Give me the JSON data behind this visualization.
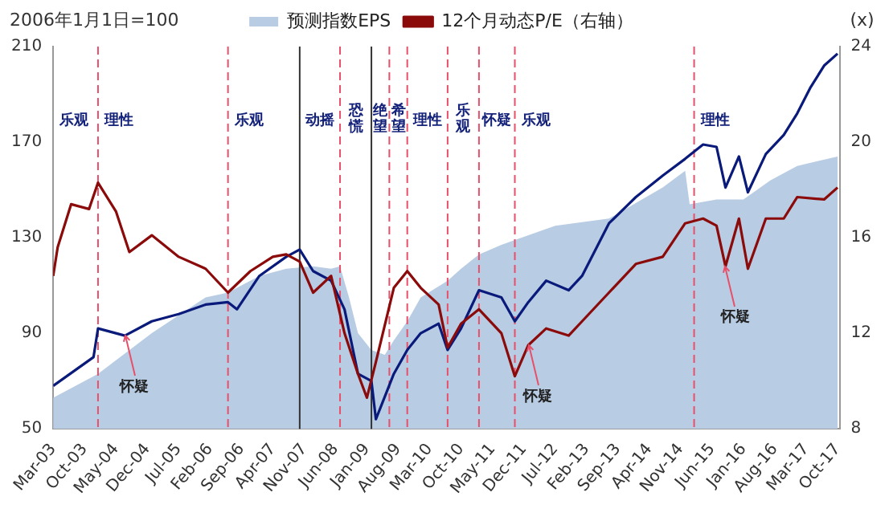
{
  "chart_data": {
    "type": "line",
    "ylabel": "2006年1月1日=100",
    "y2label": "(x)",
    "legend": "top",
    "xlim": [
      "2003-03",
      "2017-10-15"
    ],
    "xticks": [
      {
        "value": "2003-03",
        "label": "Mar-03"
      },
      {
        "value": "2003-10",
        "label": "Oct-03"
      },
      {
        "value": "2004-05",
        "label": "May-04"
      },
      {
        "value": "2004-12",
        "label": "Dec-04"
      },
      {
        "value": "2005-07",
        "label": "Jul-05"
      },
      {
        "value": "2006-02",
        "label": "Feb-06"
      },
      {
        "value": "2006-09",
        "label": "Sep-06"
      },
      {
        "value": "2007-04",
        "label": "Apr-07"
      },
      {
        "value": "2007-11",
        "label": "Nov-07"
      },
      {
        "value": "2008-06",
        "label": "Jun-08"
      },
      {
        "value": "2009-01",
        "label": "Jan-09"
      },
      {
        "value": "2009-08",
        "label": "Aug-09"
      },
      {
        "value": "2010-03",
        "label": "Mar-10"
      },
      {
        "value": "2010-10",
        "label": "Oct-10"
      },
      {
        "value": "2011-05",
        "label": "May-11"
      },
      {
        "value": "2011-12",
        "label": "Dec-11"
      },
      {
        "value": "2012-07",
        "label": "Jul-12"
      },
      {
        "value": "2013-02",
        "label": "Feb-13"
      },
      {
        "value": "2013-09",
        "label": "Sep-13"
      },
      {
        "value": "2014-04",
        "label": "Apr-14"
      },
      {
        "value": "2014-11",
        "label": "Nov-14"
      },
      {
        "value": "2015-06",
        "label": "Jun-15"
      },
      {
        "value": "2016-01",
        "label": "Jan-16"
      },
      {
        "value": "2016-08",
        "label": "Aug-16"
      },
      {
        "value": "2017-03",
        "label": "Mar-17"
      },
      {
        "value": "2017-10",
        "label": "Oct-17"
      }
    ],
    "ylim": [
      50,
      210
    ],
    "yticks": [
      50,
      90,
      130,
      170,
      210
    ],
    "y2lim": [
      8,
      24
    ],
    "y2ticks": [
      8,
      12,
      16,
      20,
      24
    ],
    "series": [
      {
        "name": "预测指数EPS",
        "type": "area",
        "color": "#b8cce4",
        "x": [
          "2003-03",
          "2004-01",
          "2005-01",
          "2006-01",
          "2006-06",
          "2007-01",
          "2007-07",
          "2008-01",
          "2008-05",
          "2008-07",
          "2008-09",
          "2008-11",
          "2009-02",
          "2009-05",
          "2009-07",
          "2009-10",
          "2010-01",
          "2010-07",
          "2010-10",
          "2011-02",
          "2011-07",
          "2011-10",
          "2012-07",
          "2013-07",
          "2014-07",
          "2014-12",
          "2015-01",
          "2015-07",
          "2016-01",
          "2016-07",
          "2017-01",
          "2017-10"
        ],
        "values": [
          63,
          73,
          90,
          105,
          107,
          114,
          117,
          118,
          117,
          118,
          105,
          90,
          83,
          81,
          87,
          95,
          105,
          112,
          117,
          123,
          127,
          129,
          135,
          138,
          151,
          158,
          144,
          146,
          146,
          154,
          160,
          164
        ]
      },
      {
        "color": "#0a1a7a",
        "x": [
          "2003-03",
          "2003-12",
          "2004-01",
          "2004-07",
          "2005-01",
          "2005-07",
          "2006-01",
          "2006-06",
          "2006-08",
          "2007-01",
          "2007-07",
          "2007-10",
          "2008-01",
          "2008-05",
          "2008-08",
          "2008-11",
          "2009-02",
          "2009-03",
          "2009-07",
          "2009-10",
          "2010-01",
          "2010-05",
          "2010-07",
          "2010-10",
          "2011-02",
          "2011-07",
          "2011-10",
          "2012-01",
          "2012-05",
          "2012-10",
          "2013-01",
          "2013-07",
          "2014-01",
          "2014-07",
          "2014-12",
          "2015-04",
          "2015-07",
          "2015-09",
          "2015-12",
          "2016-02",
          "2016-06",
          "2016-10",
          "2017-01",
          "2017-04",
          "2017-07",
          "2017-10"
        ],
        "values": [
          68,
          80,
          92,
          89,
          95,
          98,
          102,
          103,
          100,
          114,
          122,
          125,
          116,
          112,
          100,
          73,
          70,
          54,
          73,
          83,
          90,
          94,
          83,
          92,
          108,
          105,
          95,
          103,
          112,
          108,
          114,
          136,
          147,
          156,
          163,
          169,
          168,
          151,
          164,
          149,
          165,
          173,
          182,
          193,
          202,
          207
        ]
      },
      {
        "name": "12个月动态P/E（右轴）",
        "axis": "y2",
        "color": "#8b0a0a",
        "x": [
          "2003-03",
          "2003-04",
          "2003-07",
          "2003-11",
          "2004-01",
          "2004-05",
          "2004-08",
          "2005-01",
          "2005-07",
          "2006-01",
          "2006-06",
          "2006-11",
          "2007-04",
          "2007-07",
          "2007-10",
          "2008-01",
          "2008-05",
          "2008-08",
          "2008-11",
          "2009-01",
          "2009-03",
          "2009-07",
          "2009-10",
          "2010-01",
          "2010-05",
          "2010-07",
          "2010-10",
          "2011-02",
          "2011-07",
          "2011-10",
          "2012-01",
          "2012-05",
          "2012-10",
          "2013-01",
          "2013-07",
          "2014-01",
          "2014-07",
          "2014-12",
          "2015-04",
          "2015-07",
          "2015-09",
          "2015-12",
          "2016-02",
          "2016-06",
          "2016-10",
          "2017-01",
          "2017-07",
          "2017-10"
        ],
        "values": [
          14.4,
          15.6,
          17.4,
          17.2,
          18.3,
          17.1,
          15.4,
          16.1,
          15.2,
          14.7,
          13.7,
          14.6,
          15.2,
          15.3,
          15.0,
          13.7,
          14.4,
          12.0,
          10.3,
          9.3,
          10.8,
          13.9,
          14.6,
          13.9,
          13.2,
          11.4,
          12.4,
          13.0,
          12.0,
          10.2,
          11.5,
          12.2,
          11.9,
          12.5,
          13.7,
          14.9,
          15.2,
          16.6,
          16.8,
          16.5,
          14.8,
          16.8,
          14.7,
          16.8,
          16.8,
          17.7,
          17.6,
          18.1
        ]
      }
    ],
    "ref_lines": [
      {
        "axis": "x",
        "value": "2004-01",
        "color": "#e8506a",
        "line_style": "dashed",
        "label": "理性"
      },
      {
        "axis": "x",
        "value": "2006-06",
        "color": "#e8506a",
        "line_style": "dashed",
        "label": "乐观"
      },
      {
        "axis": "x",
        "value": "2007-10",
        "color": "#333333",
        "line_style": "solid",
        "label": "动摇"
      },
      {
        "axis": "x",
        "value": "2008-07",
        "color": "#e8506a",
        "line_style": "dashed",
        "label": "恐慌"
      },
      {
        "axis": "x",
        "value": "2009-02",
        "color": "#333333",
        "line_style": "solid",
        "label": "绝望"
      },
      {
        "axis": "x",
        "value": "2009-06",
        "color": "#e8506a",
        "line_style": "dashed",
        "label": "希望"
      },
      {
        "axis": "x",
        "value": "2009-10",
        "color": "#e8506a",
        "line_style": "dashed",
        "label": "理性"
      },
      {
        "axis": "x",
        "value": "2010-07",
        "color": "#e8506a",
        "line_style": "dashed",
        "label": "乐观"
      },
      {
        "axis": "x",
        "value": "2011-02",
        "color": "#e8506a",
        "line_style": "dashed",
        "label": "怀疑"
      },
      {
        "axis": "x",
        "value": "2011-10",
        "color": "#e8506a",
        "line_style": "dashed",
        "label": "乐观"
      },
      {
        "axis": "x",
        "value": "2015-02",
        "color": "#e8506a",
        "line_style": "dashed",
        "label": "理性"
      }
    ],
    "annotations": [
      "乐观",
      {
        "text": "怀疑",
        "x": "2004-07",
        "y": 89
      },
      {
        "text": "怀疑",
        "x": "2012-01",
        "y": 85
      },
      {
        "text": "怀疑",
        "x": "2015-09",
        "y": 118
      }
    ]
  }
}
